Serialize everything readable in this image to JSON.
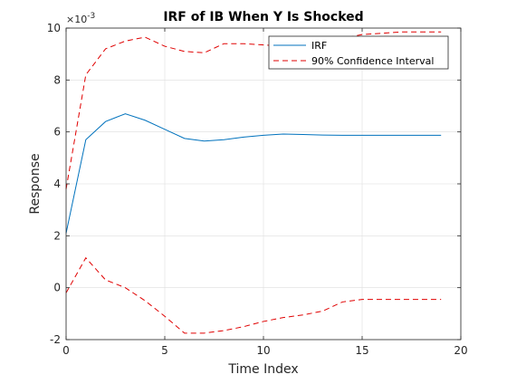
{
  "chart_data": {
    "type": "line",
    "title": "IRF of IB When Y Is Shocked",
    "xlabel": "Time Index",
    "ylabel": "Response",
    "exponent_label": "×10",
    "exponent_power": "-3",
    "xlim": [
      0,
      20
    ],
    "ylim": [
      -2,
      10
    ],
    "xticks": [
      0,
      5,
      10,
      15,
      20
    ],
    "yticks": [
      -2,
      0,
      2,
      4,
      6,
      8,
      10
    ],
    "grid": true,
    "legend_position": "top-right",
    "x": [
      0,
      1,
      2,
      3,
      4,
      5,
      6,
      7,
      8,
      9,
      10,
      11,
      12,
      13,
      14,
      15,
      16,
      17,
      18,
      19
    ],
    "series": [
      {
        "name": "IRF",
        "color": "#0072BD",
        "style": "solid",
        "values": [
          2.1,
          5.7,
          6.4,
          6.7,
          6.45,
          6.1,
          5.75,
          5.65,
          5.7,
          5.8,
          5.87,
          5.92,
          5.9,
          5.88,
          5.87,
          5.87,
          5.87,
          5.87,
          5.87,
          5.87
        ]
      },
      {
        "name": "90% Confidence Interval",
        "color": "#E00000",
        "style": "dashed",
        "values": [
          3.8,
          8.2,
          9.2,
          9.5,
          9.65,
          9.3,
          9.1,
          9.05,
          9.4,
          9.4,
          9.35,
          9.3,
          9.35,
          9.45,
          9.6,
          9.75,
          9.8,
          9.85,
          9.85,
          9.85
        ]
      },
      {
        "name": "",
        "color": "#E00000",
        "style": "dashed",
        "values": [
          -0.2,
          1.15,
          0.3,
          0.0,
          -0.5,
          -1.1,
          -1.75,
          -1.75,
          -1.65,
          -1.5,
          -1.3,
          -1.15,
          -1.05,
          -0.9,
          -0.55,
          -0.45,
          -0.45,
          -0.45,
          -0.45,
          -0.45
        ]
      }
    ]
  }
}
